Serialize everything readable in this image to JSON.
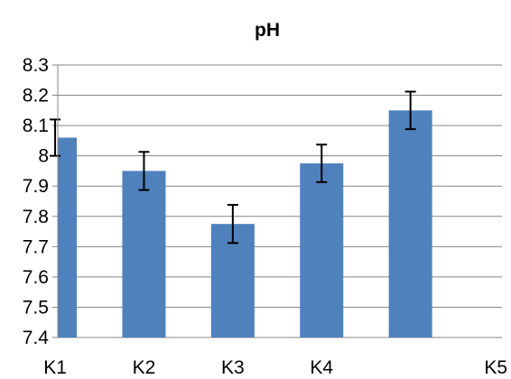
{
  "chart_data": {
    "type": "bar",
    "title": "pH",
    "xlabel": "",
    "ylabel": "",
    "categories": [
      "K1",
      "K2",
      "K3",
      "K4",
      "K5"
    ],
    "values": [
      8.06,
      7.95,
      7.775,
      7.975,
      8.15
    ],
    "error": [
      0.06,
      0.063,
      0.063,
      0.062,
      0.062
    ],
    "ylim": [
      7.4,
      8.3
    ],
    "yticks": [
      "7.4",
      "7.5",
      "7.6",
      "7.7",
      "7.8",
      "7.9",
      "8",
      "8.1",
      "8.2",
      "8.3"
    ],
    "grid": true,
    "legend": "none",
    "bar_color": "#4f81bd",
    "grid_color": "#868686",
    "error_color": "#000000"
  }
}
